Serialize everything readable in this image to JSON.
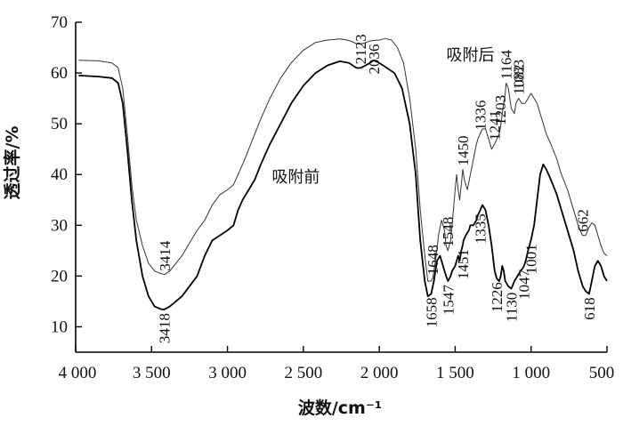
{
  "chart_data": {
    "type": "line",
    "title": "",
    "xlabel": "波数/cm⁻¹",
    "ylabel": "透过率/%",
    "xlim": [
      4000,
      500
    ],
    "ylim": [
      5,
      70
    ],
    "x_ticks": [
      4000,
      3500,
      3000,
      2500,
      2000,
      1500,
      1000,
      500
    ],
    "x_tick_labels": [
      "4 000",
      "3 500",
      "3 000",
      "2 500",
      "2 000",
      "1 500",
      "1 000",
      "500"
    ],
    "y_ticks": [
      10,
      20,
      30,
      40,
      50,
      60,
      70
    ],
    "y_tick_labels": [
      "10",
      "20",
      "30",
      "40",
      "50",
      "60",
      "70"
    ],
    "series": [
      {
        "name": "吸附前",
        "color": "#000000",
        "points": [
          [
            3980,
            59.5
          ],
          [
            3850,
            59.3
          ],
          [
            3760,
            59
          ],
          [
            3720,
            58
          ],
          [
            3690,
            54
          ],
          [
            3660,
            45
          ],
          [
            3630,
            35
          ],
          [
            3600,
            27
          ],
          [
            3560,
            20
          ],
          [
            3520,
            16
          ],
          [
            3480,
            14
          ],
          [
            3440,
            13.5
          ],
          [
            3418,
            13.4
          ],
          [
            3380,
            14
          ],
          [
            3300,
            16
          ],
          [
            3200,
            20
          ],
          [
            3150,
            24
          ],
          [
            3100,
            27
          ],
          [
            3050,
            28
          ],
          [
            3000,
            29
          ],
          [
            2960,
            30
          ],
          [
            2930,
            33
          ],
          [
            2900,
            35
          ],
          [
            2860,
            37
          ],
          [
            2820,
            39
          ],
          [
            2780,
            42
          ],
          [
            2720,
            46
          ],
          [
            2650,
            50
          ],
          [
            2580,
            54
          ],
          [
            2500,
            57.5
          ],
          [
            2420,
            60
          ],
          [
            2340,
            61.5
          ],
          [
            2260,
            62.3
          ],
          [
            2200,
            62
          ],
          [
            2150,
            61
          ],
          [
            2123,
            61
          ],
          [
            2090,
            61.5
          ],
          [
            2060,
            62
          ],
          [
            2036,
            62.5
          ],
          [
            2000,
            62
          ],
          [
            1950,
            61
          ],
          [
            1900,
            60
          ],
          [
            1850,
            57
          ],
          [
            1800,
            50
          ],
          [
            1760,
            40
          ],
          [
            1730,
            27
          ],
          [
            1700,
            19
          ],
          [
            1680,
            16
          ],
          [
            1658,
            16.5
          ],
          [
            1640,
            19
          ],
          [
            1620,
            23
          ],
          [
            1600,
            24
          ],
          [
            1580,
            22
          ],
          [
            1560,
            20
          ],
          [
            1547,
            19
          ],
          [
            1530,
            20
          ],
          [
            1520,
            21
          ],
          [
            1500,
            22
          ],
          [
            1480,
            24
          ],
          [
            1470,
            23
          ],
          [
            1460,
            25
          ],
          [
            1451,
            26
          ],
          [
            1445,
            27
          ],
          [
            1430,
            28
          ],
          [
            1410,
            29
          ],
          [
            1400,
            30
          ],
          [
            1380,
            30
          ],
          [
            1360,
            31
          ],
          [
            1350,
            32
          ],
          [
            1335,
            33
          ],
          [
            1320,
            34
          ],
          [
            1300,
            33
          ],
          [
            1280,
            30
          ],
          [
            1260,
            26
          ],
          [
            1240,
            21
          ],
          [
            1226,
            19.5
          ],
          [
            1210,
            19
          ],
          [
            1200,
            20
          ],
          [
            1190,
            22
          ],
          [
            1180,
            21
          ],
          [
            1170,
            19
          ],
          [
            1150,
            18
          ],
          [
            1130,
            17.5
          ],
          [
            1110,
            19
          ],
          [
            1090,
            20
          ],
          [
            1070,
            21
          ],
          [
            1055,
            21.5
          ],
          [
            1047,
            22
          ],
          [
            1035,
            23
          ],
          [
            1020,
            25
          ],
          [
            1001,
            27
          ],
          [
            980,
            30
          ],
          [
            960,
            35
          ],
          [
            940,
            40
          ],
          [
            920,
            42
          ],
          [
            900,
            41
          ],
          [
            870,
            39
          ],
          [
            830,
            36
          ],
          [
            800,
            33
          ],
          [
            760,
            29
          ],
          [
            720,
            25
          ],
          [
            690,
            21
          ],
          [
            660,
            18
          ],
          [
            640,
            17
          ],
          [
            618,
            16.5
          ],
          [
            600,
            19
          ],
          [
            580,
            22
          ],
          [
            560,
            23
          ],
          [
            540,
            22
          ],
          [
            520,
            20
          ],
          [
            500,
            19
          ]
        ]
      },
      {
        "name": "吸附后",
        "color": "#333333",
        "points": [
          [
            3980,
            62.5
          ],
          [
            3850,
            62.4
          ],
          [
            3760,
            62
          ],
          [
            3720,
            61
          ],
          [
            3690,
            57
          ],
          [
            3660,
            48
          ],
          [
            3630,
            38
          ],
          [
            3600,
            31
          ],
          [
            3560,
            26
          ],
          [
            3520,
            22.5
          ],
          [
            3480,
            21
          ],
          [
            3440,
            20.5
          ],
          [
            3414,
            20.3
          ],
          [
            3380,
            21
          ],
          [
            3300,
            24
          ],
          [
            3200,
            29
          ],
          [
            3150,
            31
          ],
          [
            3100,
            34
          ],
          [
            3050,
            36
          ],
          [
            3000,
            37
          ],
          [
            2960,
            38
          ],
          [
            2930,
            40
          ],
          [
            2900,
            42
          ],
          [
            2860,
            45
          ],
          [
            2820,
            48
          ],
          [
            2780,
            51
          ],
          [
            2720,
            55
          ],
          [
            2650,
            59
          ],
          [
            2580,
            62
          ],
          [
            2500,
            64.5
          ],
          [
            2420,
            66
          ],
          [
            2340,
            66.5
          ],
          [
            2260,
            66.7
          ],
          [
            2200,
            66.4
          ],
          [
            2150,
            65.8
          ],
          [
            2123,
            65.7
          ],
          [
            2090,
            66
          ],
          [
            2060,
            66.3
          ],
          [
            2036,
            66.4
          ],
          [
            2000,
            66.5
          ],
          [
            1960,
            66.8
          ],
          [
            1920,
            66.5
          ],
          [
            1880,
            65
          ],
          [
            1840,
            62
          ],
          [
            1800,
            55
          ],
          [
            1760,
            45
          ],
          [
            1730,
            33
          ],
          [
            1700,
            24
          ],
          [
            1680,
            19
          ],
          [
            1660,
            19
          ],
          [
            1648,
            19.5
          ],
          [
            1630,
            23
          ],
          [
            1610,
            28
          ],
          [
            1590,
            31
          ],
          [
            1570,
            29
          ],
          [
            1560,
            26
          ],
          [
            1548,
            25
          ],
          [
            1530,
            27
          ],
          [
            1520,
            30
          ],
          [
            1500,
            37
          ],
          [
            1490,
            40
          ],
          [
            1480,
            37
          ],
          [
            1470,
            35
          ],
          [
            1460,
            38
          ],
          [
            1450,
            41
          ],
          [
            1440,
            39
          ],
          [
            1420,
            37
          ],
          [
            1400,
            40
          ],
          [
            1380,
            43
          ],
          [
            1360,
            46
          ],
          [
            1350,
            47
          ],
          [
            1336,
            48
          ],
          [
            1320,
            49
          ],
          [
            1300,
            49
          ],
          [
            1280,
            47
          ],
          [
            1260,
            45
          ],
          [
            1241,
            46
          ],
          [
            1225,
            47
          ],
          [
            1210,
            48
          ],
          [
            1203,
            49
          ],
          [
            1190,
            52
          ],
          [
            1180,
            54
          ],
          [
            1170,
            56
          ],
          [
            1164,
            58
          ],
          [
            1150,
            57
          ],
          [
            1130,
            53
          ],
          [
            1110,
            52
          ],
          [
            1100,
            54
          ],
          [
            1082,
            55
          ],
          [
            1060,
            54
          ],
          [
            1040,
            54
          ],
          [
            1020,
            55
          ],
          [
            1000,
            56
          ],
          [
            990,
            55.5
          ],
          [
            960,
            54
          ],
          [
            940,
            52
          ],
          [
            920,
            50
          ],
          [
            900,
            48
          ],
          [
            870,
            46
          ],
          [
            830,
            43
          ],
          [
            800,
            40
          ],
          [
            760,
            37
          ],
          [
            720,
            33
          ],
          [
            690,
            30
          ],
          [
            662,
            28
          ],
          [
            640,
            28
          ],
          [
            620,
            29.5
          ],
          [
            600,
            30.5
          ],
          [
            580,
            30
          ],
          [
            560,
            28
          ],
          [
            540,
            26
          ],
          [
            520,
            24.5
          ],
          [
            500,
            24
          ]
        ]
      }
    ],
    "curve_labels": [
      {
        "text": "吸附前",
        "x": 2550,
        "y": 38.5
      },
      {
        "text": "吸附后",
        "x": 1400,
        "y": 62.5
      }
    ],
    "peak_labels_before": [
      {
        "text": "3418",
        "x": 3418,
        "y": 13.4
      },
      {
        "text": "2123",
        "x": 2123,
        "y": 61
      },
      {
        "text": "1658",
        "x": 1658,
        "y": 16.5
      },
      {
        "text": "1547",
        "x": 1547,
        "y": 19
      },
      {
        "text": "1451",
        "x": 1451,
        "y": 26
      },
      {
        "text": "1335",
        "x": 1335,
        "y": 33
      },
      {
        "text": "1226",
        "x": 1226,
        "y": 19.5
      },
      {
        "text": "1130",
        "x": 1130,
        "y": 17.5
      },
      {
        "text": "1047",
        "x": 1047,
        "y": 22
      },
      {
        "text": "1001",
        "x": 1001,
        "y": 27
      },
      {
        "text": "618",
        "x": 618,
        "y": 16.5
      }
    ],
    "peak_labels_after": [
      {
        "text": "3414",
        "x": 3414,
        "y": 20.3
      },
      {
        "text": "2036",
        "x": 2036,
        "y": 66.4
      },
      {
        "text": "1648",
        "x": 1648,
        "y": 19.5
      },
      {
        "text": "1548",
        "x": 1548,
        "y": 25
      },
      {
        "text": "1450",
        "x": 1450,
        "y": 41
      },
      {
        "text": "1336",
        "x": 1336,
        "y": 48
      },
      {
        "text": "1241",
        "x": 1241,
        "y": 46
      },
      {
        "text": "1203",
        "x": 1203,
        "y": 49
      },
      {
        "text": "1164",
        "x": 1164,
        "y": 58
      },
      {
        "text": "1082",
        "x": 1082,
        "y": 55
      },
      {
        "text": "1083",
        "x": 1083,
        "y": 56
      },
      {
        "text": "662",
        "x": 662,
        "y": 28
      }
    ]
  }
}
